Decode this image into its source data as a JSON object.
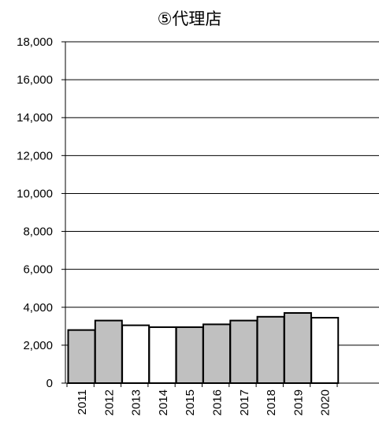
{
  "chart_data": {
    "type": "bar",
    "title": "⑤代理店",
    "xlabel": "",
    "ylabel": "",
    "categories": [
      "2011",
      "2012",
      "2013",
      "2014",
      "2015",
      "2016",
      "2017",
      "2018",
      "2019",
      "2020"
    ],
    "values": [
      2800,
      3300,
      3050,
      2950,
      2950,
      3100,
      3300,
      3500,
      3700,
      3450
    ],
    "ylim": [
      0,
      18000
    ],
    "yticks": [
      0,
      2000,
      4000,
      6000,
      8000,
      10000,
      12000,
      14000,
      16000,
      18000
    ],
    "ytick_labels": [
      "0",
      "2,000",
      "4,000",
      "6,000",
      "8,000",
      "10,000",
      "12,000",
      "14,000",
      "16,000",
      "18,000"
    ],
    "bar_fills": [
      "#c0c0c0",
      "#c0c0c0",
      "#ffffff",
      "#ffffff",
      "#c0c0c0",
      "#c0c0c0",
      "#c0c0c0",
      "#c0c0c0",
      "#c0c0c0",
      "#ffffff"
    ],
    "grid": true,
    "legend": "none"
  }
}
